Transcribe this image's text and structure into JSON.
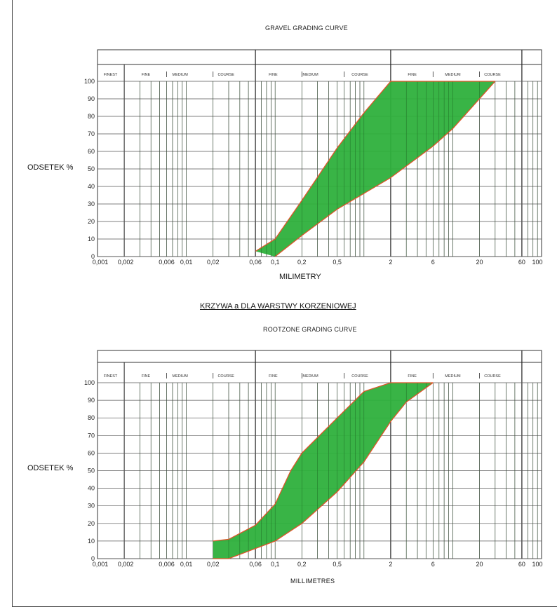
{
  "chart_data": [
    {
      "type": "area",
      "title": "GRAVEL GRADING CURVE",
      "xlabel": "MILIMETRY",
      "ylabel": "ODSETEK %",
      "x_scale": "log",
      "xlim": [
        0.001,
        100
      ],
      "ylim": [
        0,
        100
      ],
      "grid": true,
      "x_tick_labels": [
        "0,001",
        "0,002",
        "0,006",
        "0,01",
        "0,02",
        "0,06",
        "0,1",
        "0,2",
        "0,5",
        "2",
        "6",
        "20",
        "60",
        "100"
      ],
      "y_tick_labels": [
        "0",
        "10",
        "20",
        "30",
        "40",
        "50",
        "60",
        "70",
        "80",
        "90",
        "100"
      ],
      "bands": [
        {
          "label": "FINEST"
        },
        {
          "label": "FINE"
        },
        {
          "label": "MEDIUM"
        },
        {
          "label": "COURSE"
        },
        {
          "label": "FINE"
        },
        {
          "label": "MEDIUM"
        },
        {
          "label": "COURSE"
        },
        {
          "label": "FINE"
        },
        {
          "label": "MEDIUM"
        },
        {
          "label": "COURSE"
        }
      ],
      "series": [
        {
          "role": "upper-limit",
          "x": [
            0.06,
            0.1,
            0.2,
            0.5,
            1,
            2,
            30
          ],
          "y": [
            3,
            10,
            32,
            62,
            82,
            100,
            100
          ]
        },
        {
          "role": "lower-limit",
          "x": [
            0.1,
            0.2,
            0.5,
            1,
            2,
            6,
            10,
            30
          ],
          "y": [
            0,
            12,
            27,
            36,
            45,
            63,
            73,
            100
          ]
        }
      ],
      "fill_color": "#2eb03c",
      "edge_color": "#e0542a"
    },
    {
      "type": "area",
      "caption": "KRZYWA a DLA WARSTWY KORZENIOWEJ",
      "title": "ROOTZONE GRADING CURVE",
      "xlabel": "MILLIMETRES",
      "ylabel": "ODSETEK %",
      "x_scale": "log",
      "xlim": [
        0.001,
        100
      ],
      "ylim": [
        0,
        100
      ],
      "grid": true,
      "x_tick_labels": [
        "0,001",
        "0,002",
        "0,006",
        "0,01",
        "0,02",
        "0,06",
        "0,1",
        "0,2",
        "0,5",
        "2",
        "6",
        "20",
        "60",
        "100"
      ],
      "y_tick_labels": [
        "0",
        "10",
        "20",
        "30",
        "40",
        "50",
        "60",
        "70",
        "80",
        "90",
        "100"
      ],
      "bands": [
        {
          "label": "FINEST"
        },
        {
          "label": "FINE"
        },
        {
          "label": "MEDIUM"
        },
        {
          "label": "COURSE"
        },
        {
          "label": "FINE"
        },
        {
          "label": "MEDIUM"
        },
        {
          "label": "COURSE"
        },
        {
          "label": "FINE"
        },
        {
          "label": "MEDIUM"
        },
        {
          "label": "COURSE"
        }
      ],
      "series": [
        {
          "role": "upper-limit",
          "x": [
            0.02,
            0.03,
            0.06,
            0.1,
            0.15,
            0.2,
            0.5,
            1,
            2,
            6
          ],
          "y": [
            10,
            11,
            19,
            31,
            50,
            60,
            80,
            95,
            100,
            100
          ]
        },
        {
          "role": "lower-limit",
          "x": [
            0.02,
            0.03,
            0.1,
            0.2,
            0.5,
            1,
            2,
            3,
            6
          ],
          "y": [
            0,
            0,
            10,
            20,
            38,
            55,
            78,
            89,
            100
          ]
        }
      ],
      "fill_color": "#2eb03c",
      "edge_color": "#e0542a"
    }
  ]
}
